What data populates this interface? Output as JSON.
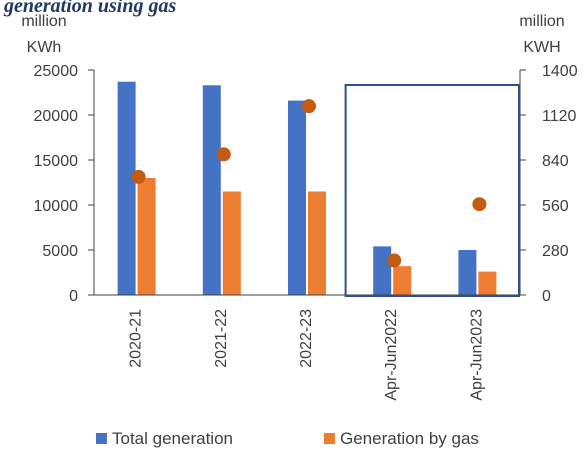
{
  "chart_data": {
    "type": "bar",
    "title": "generation using gas",
    "left_axis_label_line1": "million",
    "left_axis_label_line2": "KWh",
    "right_axis_label_line1": "million",
    "right_axis_label_line2": "KWH",
    "categories": [
      "2020-21",
      "2021-22",
      "2022-23",
      "Apr-Jun2022",
      "Apr-Jun2023"
    ],
    "series": [
      {
        "name": "Total generation",
        "type": "bar",
        "axis": "left",
        "color": "#4472c4",
        "values": [
          23700,
          23300,
          21600,
          5400,
          5000
        ]
      },
      {
        "name": "Generation by gas",
        "type": "bar",
        "axis": "left",
        "color": "#ed7d31",
        "values": [
          13000,
          11500,
          11500,
          3200,
          2600
        ]
      },
      {
        "name": "",
        "type": "scatter",
        "axis": "right",
        "color": "#c55a11",
        "values": [
          735,
          875,
          1175,
          215,
          565
        ]
      }
    ],
    "left_ylim": [
      0,
      25000
    ],
    "left_yticks": [
      "0",
      "5000",
      "10000",
      "15000",
      "20000",
      "25000"
    ],
    "right_ylim": [
      0,
      1400
    ],
    "right_yticks": [
      "0",
      "280",
      "560",
      "840",
      "1120",
      "1400"
    ],
    "highlight_box_categories": [
      "Apr-Jun2022",
      "Apr-Jun2023"
    ],
    "highlight_color": "#2f4f8f",
    "legend_position": "bottom",
    "grid": false
  }
}
